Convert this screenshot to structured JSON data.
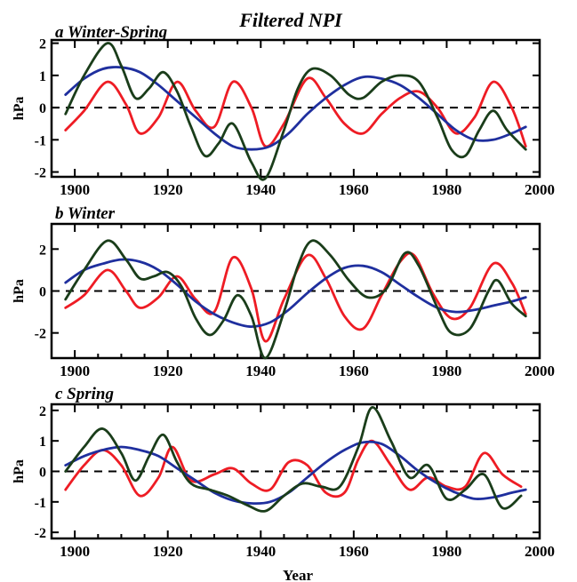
{
  "figure": {
    "title": "Filtered NPI",
    "xlabel": "Year"
  },
  "chart_data": [
    {
      "type": "line",
      "panel_label": "a Winter-Spring",
      "ylabel": "hPa",
      "xlim": [
        1895,
        2000
      ],
      "ylim": [
        -2.15,
        2.1
      ],
      "xticks": [
        1900,
        1920,
        1940,
        1960,
        1980,
        2000
      ],
      "yticks": [
        -2,
        -1,
        0,
        1,
        2
      ],
      "zero_line": "dashed",
      "series": [
        {
          "color": "#ee1c24",
          "x": [
            1898,
            1902,
            1907,
            1911,
            1914,
            1918,
            1922,
            1926,
            1930,
            1934,
            1938,
            1941,
            1945,
            1950,
            1954,
            1958,
            1962,
            1966,
            1970,
            1974,
            1978,
            1982,
            1986,
            1990,
            1994,
            1997
          ],
          "y": [
            -0.7,
            -0.1,
            0.8,
            0.1,
            -0.8,
            -0.3,
            0.8,
            -0.1,
            -0.6,
            0.8,
            0.0,
            -1.2,
            -0.5,
            0.9,
            0.3,
            -0.5,
            -0.8,
            -0.2,
            0.3,
            0.5,
            0.0,
            -0.8,
            -0.3,
            0.8,
            0.0,
            -1.2
          ]
        },
        {
          "color": "#1a3d1a",
          "x": [
            1898,
            1902,
            1907,
            1910,
            1913,
            1916,
            1919,
            1922,
            1925,
            1928,
            1931,
            1934,
            1938,
            1941,
            1945,
            1948,
            1951,
            1955,
            1959,
            1962,
            1966,
            1970,
            1974,
            1978,
            1981,
            1984,
            1987,
            1990,
            1993,
            1997
          ],
          "y": [
            -0.2,
            1.0,
            2.0,
            1.3,
            0.3,
            0.6,
            1.1,
            0.5,
            -0.6,
            -1.5,
            -1.1,
            -0.5,
            -1.7,
            -2.2,
            -0.7,
            0.6,
            1.2,
            1.0,
            0.4,
            0.3,
            0.8,
            1.0,
            0.8,
            -0.3,
            -1.3,
            -1.5,
            -0.7,
            -0.1,
            -0.7,
            -1.3
          ]
        },
        {
          "color": "#1f2f9e",
          "x": [
            1898,
            1902,
            1906,
            1910,
            1914,
            1918,
            1922,
            1926,
            1930,
            1934,
            1938,
            1942,
            1946,
            1950,
            1954,
            1958,
            1962,
            1966,
            1970,
            1974,
            1978,
            1982,
            1986,
            1990,
            1994,
            1997
          ],
          "y": [
            0.4,
            0.9,
            1.2,
            1.25,
            1.1,
            0.7,
            0.2,
            -0.3,
            -0.8,
            -1.2,
            -1.3,
            -1.2,
            -0.8,
            -0.2,
            0.3,
            0.7,
            0.95,
            0.9,
            0.7,
            0.3,
            -0.2,
            -0.7,
            -1.0,
            -1.0,
            -0.8,
            -0.6
          ]
        }
      ]
    },
    {
      "type": "line",
      "panel_label": "b Winter",
      "ylabel": "hPa",
      "xlim": [
        1895,
        2000
      ],
      "ylim": [
        -3.2,
        3.2
      ],
      "xticks": [
        1900,
        1920,
        1940,
        1960,
        1980,
        2000
      ],
      "yticks": [
        -2,
        0,
        2
      ],
      "zero_line": "dashed",
      "series": [
        {
          "color": "#ee1c24",
          "x": [
            1898,
            1902,
            1907,
            1911,
            1914,
            1918,
            1922,
            1926,
            1930,
            1934,
            1938,
            1941,
            1945,
            1950,
            1954,
            1958,
            1962,
            1966,
            1970,
            1973,
            1977,
            1981,
            1985,
            1990,
            1994,
            1997
          ],
          "y": [
            -0.8,
            -0.2,
            1.0,
            0.0,
            -0.8,
            -0.3,
            0.7,
            -0.4,
            -1.0,
            1.6,
            0.1,
            -2.4,
            -0.4,
            1.7,
            0.6,
            -1.2,
            -1.8,
            -0.2,
            1.4,
            1.7,
            -0.1,
            -1.3,
            -0.8,
            1.3,
            0.4,
            -1.1
          ]
        },
        {
          "color": "#1a3d1a",
          "x": [
            1898,
            1902,
            1907,
            1911,
            1914,
            1917,
            1920,
            1923,
            1926,
            1929,
            1932,
            1935,
            1938,
            1941,
            1945,
            1948,
            1951,
            1955,
            1959,
            1963,
            1967,
            1971,
            1974,
            1978,
            1981,
            1985,
            1989,
            1991,
            1994,
            1997
          ],
          "y": [
            -0.4,
            1.0,
            2.4,
            1.5,
            0.6,
            0.7,
            0.9,
            0.2,
            -1.3,
            -2.1,
            -1.4,
            -0.2,
            -1.2,
            -3.2,
            -1.0,
            1.2,
            2.4,
            1.7,
            0.5,
            -0.3,
            0.1,
            1.8,
            1.2,
            -0.8,
            -2.0,
            -1.8,
            0.0,
            0.5,
            -0.6,
            -1.2
          ]
        },
        {
          "color": "#1f2f9e",
          "x": [
            1898,
            1902,
            1906,
            1910,
            1914,
            1918,
            1922,
            1926,
            1930,
            1934,
            1938,
            1942,
            1946,
            1950,
            1954,
            1958,
            1962,
            1966,
            1970,
            1974,
            1978,
            1982,
            1986,
            1990,
            1994,
            1997
          ],
          "y": [
            0.4,
            1.0,
            1.3,
            1.5,
            1.4,
            1.0,
            0.3,
            -0.5,
            -1.1,
            -1.5,
            -1.7,
            -1.5,
            -0.9,
            -0.1,
            0.6,
            1.1,
            1.2,
            0.9,
            0.3,
            -0.3,
            -0.8,
            -1.0,
            -0.9,
            -0.7,
            -0.5,
            -0.3
          ]
        }
      ]
    },
    {
      "type": "line",
      "panel_label": "c Spring",
      "ylabel": "hPa",
      "xlim": [
        1895,
        2000
      ],
      "ylim": [
        -2.2,
        2.2
      ],
      "xticks": [
        1900,
        1920,
        1940,
        1960,
        1980,
        2000
      ],
      "yticks": [
        -2,
        -1,
        0,
        1,
        2
      ],
      "zero_line": "dashed",
      "series": [
        {
          "color": "#ee1c24",
          "x": [
            1898,
            1902,
            1906,
            1910,
            1914,
            1918,
            1921,
            1925,
            1930,
            1934,
            1938,
            1942,
            1946,
            1950,
            1954,
            1958,
            1961,
            1964,
            1968,
            1972,
            1976,
            1980,
            1984,
            1988,
            1992,
            1996
          ],
          "y": [
            -0.6,
            0.2,
            0.7,
            0.2,
            -0.8,
            -0.2,
            0.8,
            -0.3,
            -0.1,
            0.1,
            -0.4,
            -0.6,
            0.3,
            0.2,
            -0.7,
            -0.7,
            0.4,
            1.0,
            0.2,
            -0.6,
            -0.2,
            -0.5,
            -0.5,
            0.6,
            -0.1,
            -0.5
          ]
        },
        {
          "color": "#1a3d1a",
          "x": [
            1898,
            1902,
            1906,
            1910,
            1913,
            1916,
            1919,
            1922,
            1925,
            1929,
            1933,
            1937,
            1941,
            1945,
            1949,
            1953,
            1957,
            1961,
            1964,
            1968,
            1972,
            1976,
            1980,
            1984,
            1988,
            1992,
            1996
          ],
          "y": [
            0.0,
            0.8,
            1.4,
            0.6,
            -0.3,
            0.5,
            1.2,
            0.3,
            -0.4,
            -0.6,
            -0.8,
            -1.1,
            -1.3,
            -0.8,
            -0.4,
            -0.5,
            -0.5,
            0.8,
            2.1,
            1.0,
            -0.2,
            0.2,
            -0.9,
            -0.6,
            -0.1,
            -1.2,
            -0.8
          ]
        },
        {
          "color": "#1f2f9e",
          "x": [
            1898,
            1902,
            1906,
            1910,
            1914,
            1918,
            1922,
            1926,
            1930,
            1934,
            1938,
            1942,
            1946,
            1950,
            1954,
            1958,
            1962,
            1966,
            1970,
            1974,
            1978,
            1982,
            1986,
            1990,
            1994,
            1997
          ],
          "y": [
            0.2,
            0.5,
            0.7,
            0.8,
            0.7,
            0.5,
            0.1,
            -0.3,
            -0.7,
            -0.95,
            -1.05,
            -1.0,
            -0.7,
            -0.2,
            0.3,
            0.7,
            0.95,
            0.9,
            0.5,
            0.0,
            -0.4,
            -0.7,
            -0.9,
            -0.85,
            -0.7,
            -0.6
          ]
        }
      ]
    }
  ]
}
